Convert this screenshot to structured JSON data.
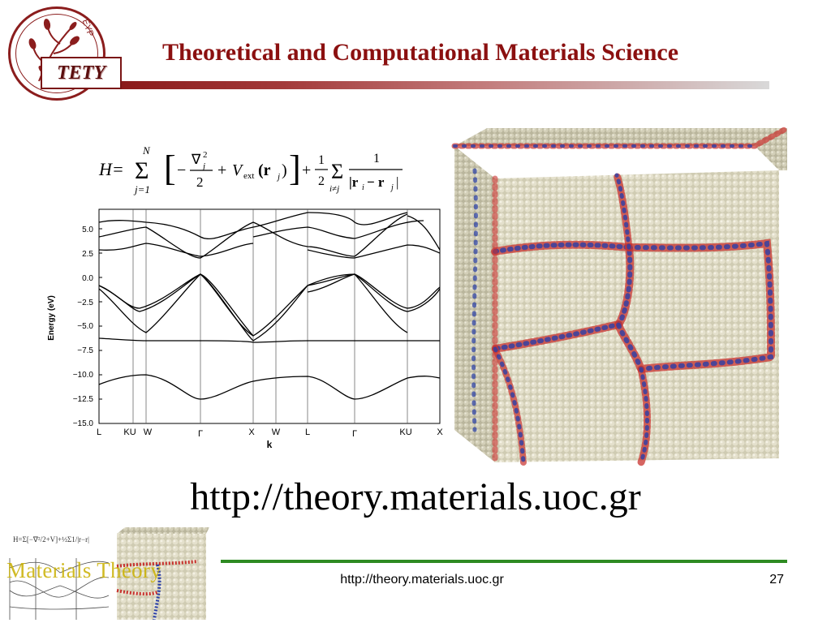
{
  "header": {
    "logo_text": "TETY",
    "logo_letters": "ΕΥΡ",
    "title": "Theoretical and Computational Materials Science",
    "accent_color": "#8b1010"
  },
  "equation": {
    "lhs": "H=",
    "sum_top": "N",
    "sum_bottom": "j=1",
    "kin_num": "∇",
    "kin_sub": "j",
    "kin_sup": "2",
    "kin_den": "2",
    "vext": "V",
    "vext_sub": "ext",
    "vext_arg": "(r",
    "vext_arg_sub": "j",
    "vext_close": ")",
    "half_num": "1",
    "half_den": "2",
    "pair_sub": "i≠j",
    "pair_num": "1",
    "pair_den": "|r",
    "pair_den_i": "i",
    "pair_den_mid": "− r",
    "pair_den_j": "j",
    "pair_den_close": "|"
  },
  "band_structure": {
    "ylabel": "Energy (eV)",
    "xlabel": "k",
    "y_ticks": [
      "5.0",
      "2.5",
      "0.0",
      "−2.5",
      "−5.0",
      "−7.5",
      "−10.0",
      "−12.5",
      "−15.0"
    ],
    "k_points": [
      "L",
      "KU",
      "W",
      "Γ",
      "X",
      "W",
      "L",
      "Γ",
      "KU",
      "X"
    ]
  },
  "crystal_image": {
    "icon": "polycrystal-atoms-icon",
    "colors": {
      "bulk": "#d8d4bc",
      "boundary_red": "#c8312d",
      "boundary_blue": "#2a3fa8"
    }
  },
  "main_url": "http://theory.materials.uoc.gr",
  "footer": {
    "thumbnail_label": "Materials Theory",
    "url": "http://theory.materials.uoc.gr",
    "page_number": "27",
    "line_color": "#2e8b22"
  }
}
